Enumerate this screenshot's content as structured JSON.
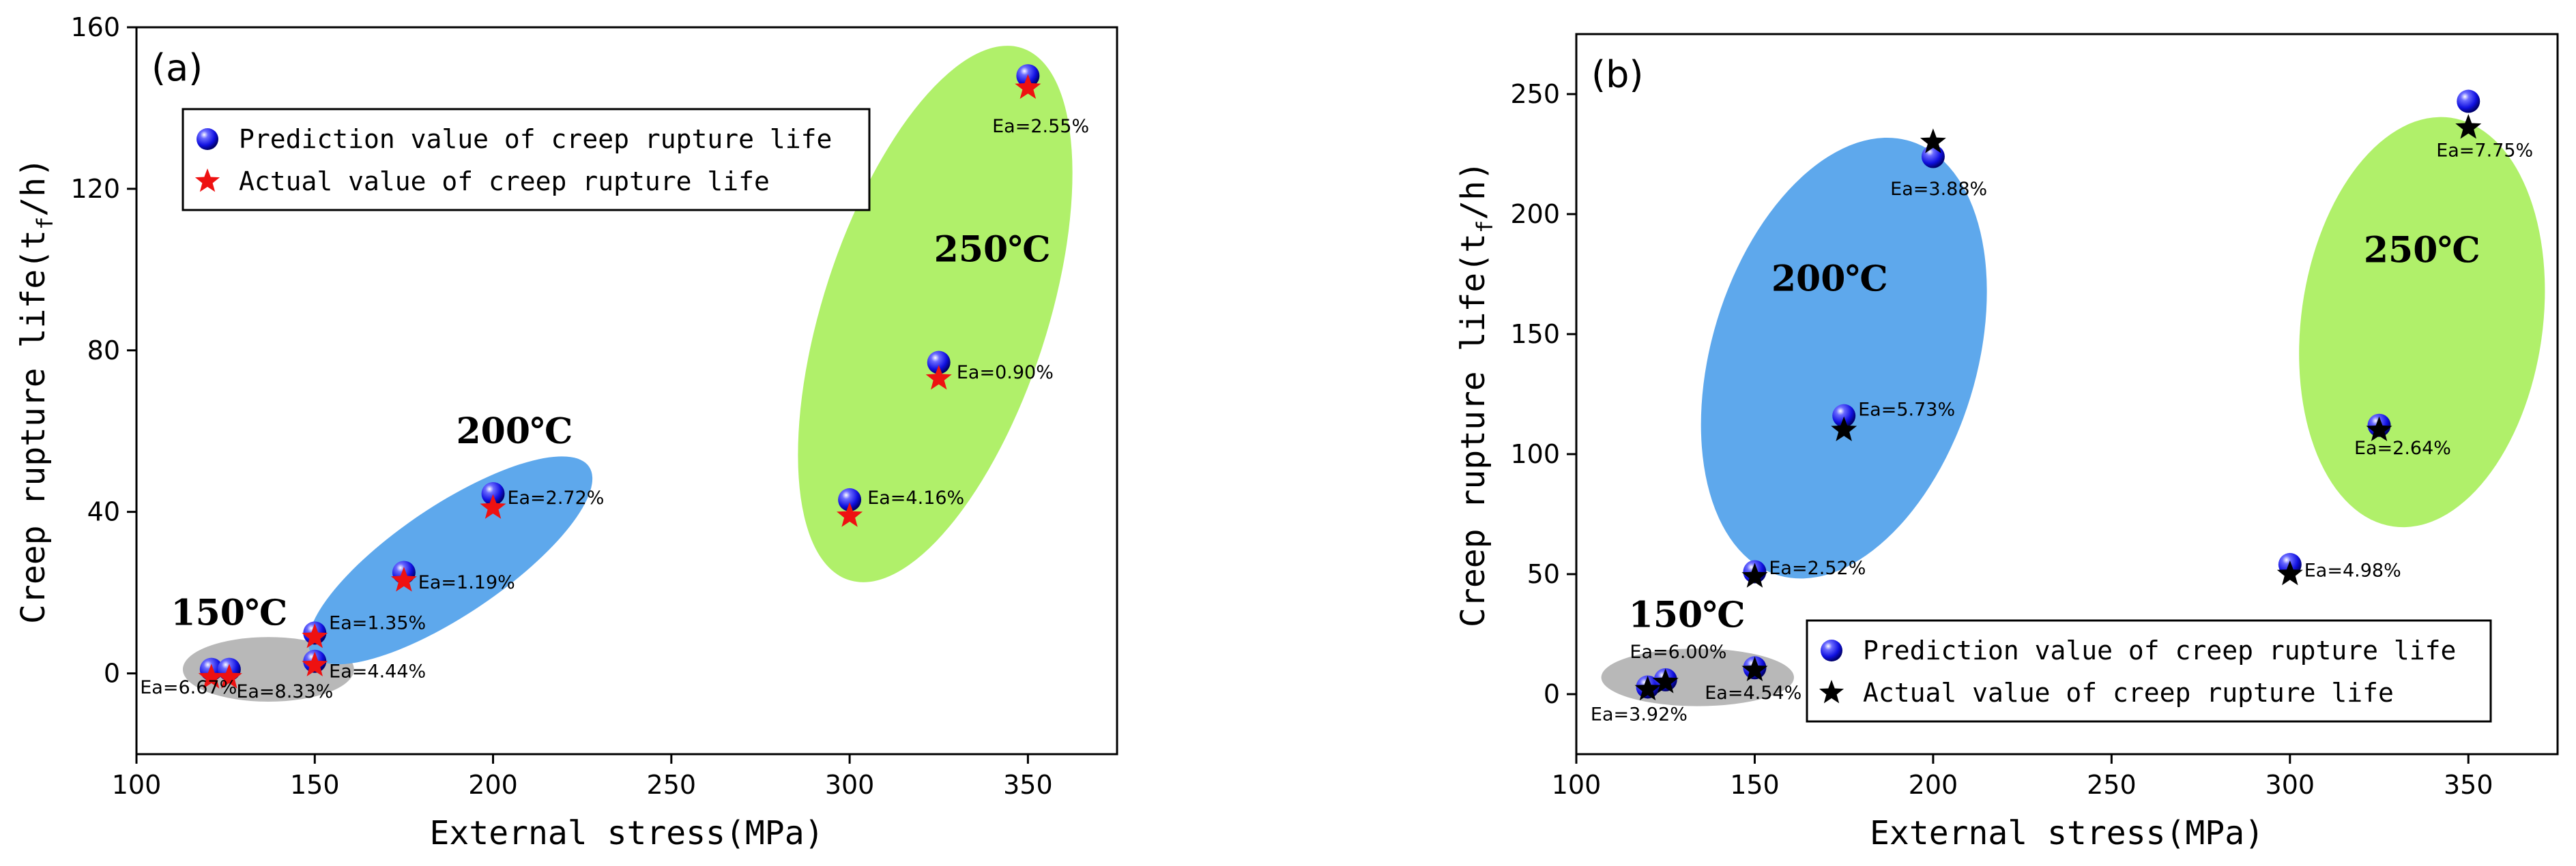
{
  "chart_data": [
    {
      "type": "scatter",
      "panel_label": "(a)",
      "xlabel": "External stress(MPa)",
      "ylabel_main": "Creep rupture life(t",
      "ylabel_sub": "f",
      "ylabel_end": "/h)",
      "xlim": [
        100,
        375
      ],
      "ylim": [
        -20,
        160
      ],
      "xticks": [
        100,
        150,
        200,
        250,
        300,
        350
      ],
      "yticks": [
        0,
        40,
        80,
        120,
        160
      ],
      "legend": {
        "position": "top-left",
        "entries": [
          "Prediction value of creep rupture life",
          "Actual value of creep rupture life"
        ]
      },
      "actual_marker": "red-star",
      "colors": {
        "predicted": "#1010e0",
        "actual": "#ee1111",
        "gray": "#b8b8b8",
        "blue": "#5ea8ec",
        "green": "#b0f06a"
      },
      "regions": [
        {
          "label": "150℃",
          "color": "gray",
          "center": [
            137,
            1
          ],
          "rx": 24,
          "ry": 8,
          "angle": 0
        },
        {
          "label": "200℃",
          "color": "blue",
          "center": [
            188,
            28
          ],
          "rx": 45,
          "ry": 14,
          "angle": 34
        },
        {
          "label": "250℃",
          "color": "green",
          "center": [
            324,
            89
          ],
          "rx": 70,
          "ry": 31,
          "angle": 72
        }
      ],
      "region_labels": [
        {
          "text": "150℃",
          "x": 126,
          "y": 12
        },
        {
          "text": "200℃",
          "x": 206,
          "y": 57
        },
        {
          "text": "250℃",
          "x": 340,
          "y": 102
        }
      ],
      "series": [
        {
          "name": "Prediction value of creep rupture life",
          "points": [
            [
              121,
              1
            ],
            [
              126,
              1
            ],
            [
              150,
              10
            ],
            [
              150,
              3
            ],
            [
              175,
              25
            ],
            [
              200,
              44.5
            ],
            [
              300,
              43
            ],
            [
              325,
              77
            ],
            [
              350,
              148
            ]
          ]
        },
        {
          "name": "Actual value of creep rupture life",
          "points": [
            [
              121,
              -1
            ],
            [
              126,
              -1
            ],
            [
              150,
              9
            ],
            [
              150,
              2
            ],
            [
              175,
              23
            ],
            [
              200,
              41
            ],
            [
              300,
              39
            ],
            [
              325,
              73
            ],
            [
              350,
              145
            ]
          ]
        }
      ],
      "annotations": [
        {
          "text": "Ea=6.67%",
          "x": 101,
          "y": -5
        },
        {
          "text": "Ea=8.33%",
          "x": 128,
          "y": -6
        },
        {
          "text": "Ea=1.35%",
          "x": 154,
          "y": 11
        },
        {
          "text": "Ea=4.44%",
          "x": 154,
          "y": -1
        },
        {
          "text": "Ea=1.19%",
          "x": 179,
          "y": 21
        },
        {
          "text": "Ea=2.72%",
          "x": 204,
          "y": 42
        },
        {
          "text": "Ea=4.16%",
          "x": 305,
          "y": 42
        },
        {
          "text": "Ea=0.90%",
          "x": 330,
          "y": 73
        },
        {
          "text": "Ea=2.55%",
          "x": 340,
          "y": 134
        }
      ]
    },
    {
      "type": "scatter",
      "panel_label": "(b)",
      "xlabel": "External stress(MPa)",
      "ylabel_main": "Creep rupture life(t",
      "ylabel_sub": "f",
      "ylabel_end": "/h)",
      "xlim": [
        100,
        375
      ],
      "ylim": [
        -25,
        275
      ],
      "xticks": [
        100,
        150,
        200,
        250,
        300,
        350
      ],
      "yticks": [
        0,
        50,
        100,
        150,
        200,
        250
      ],
      "legend": {
        "position": "bottom-right",
        "entries": [
          "Prediction value of creep rupture life",
          "Actual value of creep rupture life"
        ]
      },
      "actual_marker": "black-star",
      "colors": {
        "predicted": "#1010e0",
        "actual": "#000000",
        "gray": "#b8b8b8",
        "blue": "#5ea8ec",
        "green": "#b0f06a"
      },
      "regions": [
        {
          "label": "150℃",
          "color": "gray",
          "center": [
            134,
            7
          ],
          "rx": 27,
          "ry": 12,
          "angle": 0
        },
        {
          "label": "200℃",
          "color": "blue",
          "center": [
            175,
            140
          ],
          "rx": 90,
          "ry": 38,
          "angle": 73
        },
        {
          "label": "250℃",
          "color": "green",
          "center": [
            337,
            155
          ],
          "rx": 85,
          "ry": 34,
          "angle": 82
        }
      ],
      "region_labels": [
        {
          "text": "150℃",
          "x": 131,
          "y": 28
        },
        {
          "text": "200℃",
          "x": 171,
          "y": 168
        },
        {
          "text": "250℃",
          "x": 337,
          "y": 180
        }
      ],
      "series": [
        {
          "name": "Prediction value of creep rupture life",
          "points": [
            [
              120,
              3
            ],
            [
              125,
              6
            ],
            [
              150,
              11
            ],
            [
              150,
              51
            ],
            [
              175,
              116
            ],
            [
              200,
              224
            ],
            [
              300,
              54
            ],
            [
              325,
              112
            ],
            [
              350,
              247
            ]
          ]
        },
        {
          "name": "Actual value of creep rupture life",
          "points": [
            [
              120,
              2
            ],
            [
              125,
              5
            ],
            [
              150,
              10
            ],
            [
              150,
              49
            ],
            [
              175,
              110
            ],
            [
              200,
              230
            ],
            [
              300,
              50
            ],
            [
              325,
              110
            ],
            [
              350,
              236
            ]
          ]
        }
      ],
      "annotations": [
        {
          "text": "Ea=3.92%",
          "x": 104,
          "y": -11
        },
        {
          "text": "Ea=6.00%",
          "x": 115,
          "y": 15
        },
        {
          "text": "Ea=4.54%",
          "x": 136,
          "y": -2
        },
        {
          "text": "Ea=2.52%",
          "x": 154,
          "y": 50
        },
        {
          "text": "Ea=5.73%",
          "x": 179,
          "y": 116
        },
        {
          "text": "Ea=3.88%",
          "x": 188,
          "y": 208
        },
        {
          "text": "Ea=4.98%",
          "x": 304,
          "y": 49
        },
        {
          "text": "Ea=2.64%",
          "x": 318,
          "y": 100
        },
        {
          "text": "Ea=7.75%",
          "x": 341,
          "y": 224
        }
      ]
    }
  ]
}
